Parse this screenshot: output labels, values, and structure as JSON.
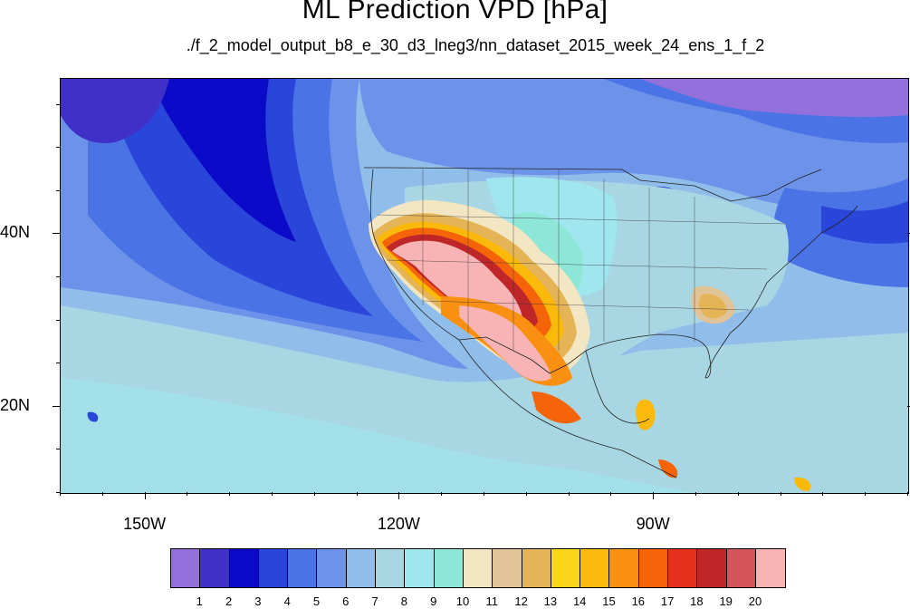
{
  "title": "ML Prediction VPD [hPa]",
  "subtitle": "./f_2_model_output_b8_e_30_d3_lneg3/nn_dataset_2015_week_24_ens_1_f_2",
  "map": {
    "projection": "cylindrical equidistant",
    "lon_range": [
      -160,
      -60
    ],
    "lat_range": [
      10,
      58
    ],
    "lon_ticks": [
      {
        "label": "150W",
        "lon": -150
      },
      {
        "label": "120W",
        "lon": -120
      },
      {
        "label": "90W",
        "lon": -90
      }
    ],
    "lat_ticks": [
      {
        "label": "40N",
        "lat": 40
      },
      {
        "label": "20N",
        "lat": 20
      }
    ],
    "field": "Vapor pressure deficit (hPa)"
  },
  "colorbar": {
    "labels": [
      "1",
      "2",
      "3",
      "4",
      "5",
      "6",
      "7",
      "8",
      "9",
      "10",
      "11",
      "12",
      "13",
      "14",
      "15",
      "16",
      "17",
      "18",
      "19",
      "20"
    ],
    "colors": [
      "#9370db",
      "#4130c8",
      "#0a0ac8",
      "#2a45da",
      "#4a74e6",
      "#6c92ea",
      "#90bde9",
      "#a8d7e3",
      "#a0e6ef",
      "#8de6d6",
      "#f3e6c2",
      "#e0c396",
      "#e4b456",
      "#fbd71b",
      "#fbb90b",
      "#f99012",
      "#f66409",
      "#e5311b",
      "#be2628",
      "#d3555a",
      "#f8b4b4"
    ]
  },
  "colors": {
    "ocean_dry": "#a8d7e3",
    "ocean_moist": "#4a74e6",
    "pacific_band": "#2a45da",
    "southwest_hot": "#f8b4b4",
    "border": "#222222"
  }
}
